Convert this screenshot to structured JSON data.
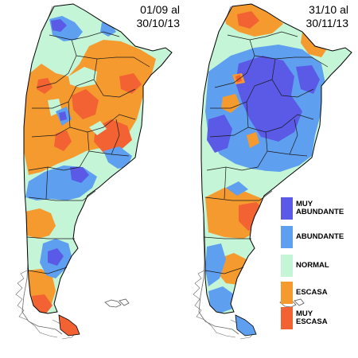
{
  "maps": [
    {
      "period_line1": "01/09 al",
      "period_line2": "30/10/13"
    },
    {
      "period_line1": "31/10 al",
      "period_line2": "30/11/13"
    }
  ],
  "legend": [
    {
      "label_line1": "MUY",
      "label_line2": "ABUNDANTE",
      "color": "#5a5ae6"
    },
    {
      "label_line1": "ABUNDANTE",
      "label_line2": "",
      "color": "#5f9ff0"
    },
    {
      "label_line1": "NORMAL",
      "label_line2": "",
      "color": "#c4f5d6"
    },
    {
      "label_line1": "ESCASA",
      "label_line2": "",
      "color": "#f59a2e"
    },
    {
      "label_line1": "MUY",
      "label_line2": "ESCASA",
      "color": "#f26233"
    }
  ],
  "colors": {
    "outline": "#000000",
    "coast": "#555555"
  }
}
